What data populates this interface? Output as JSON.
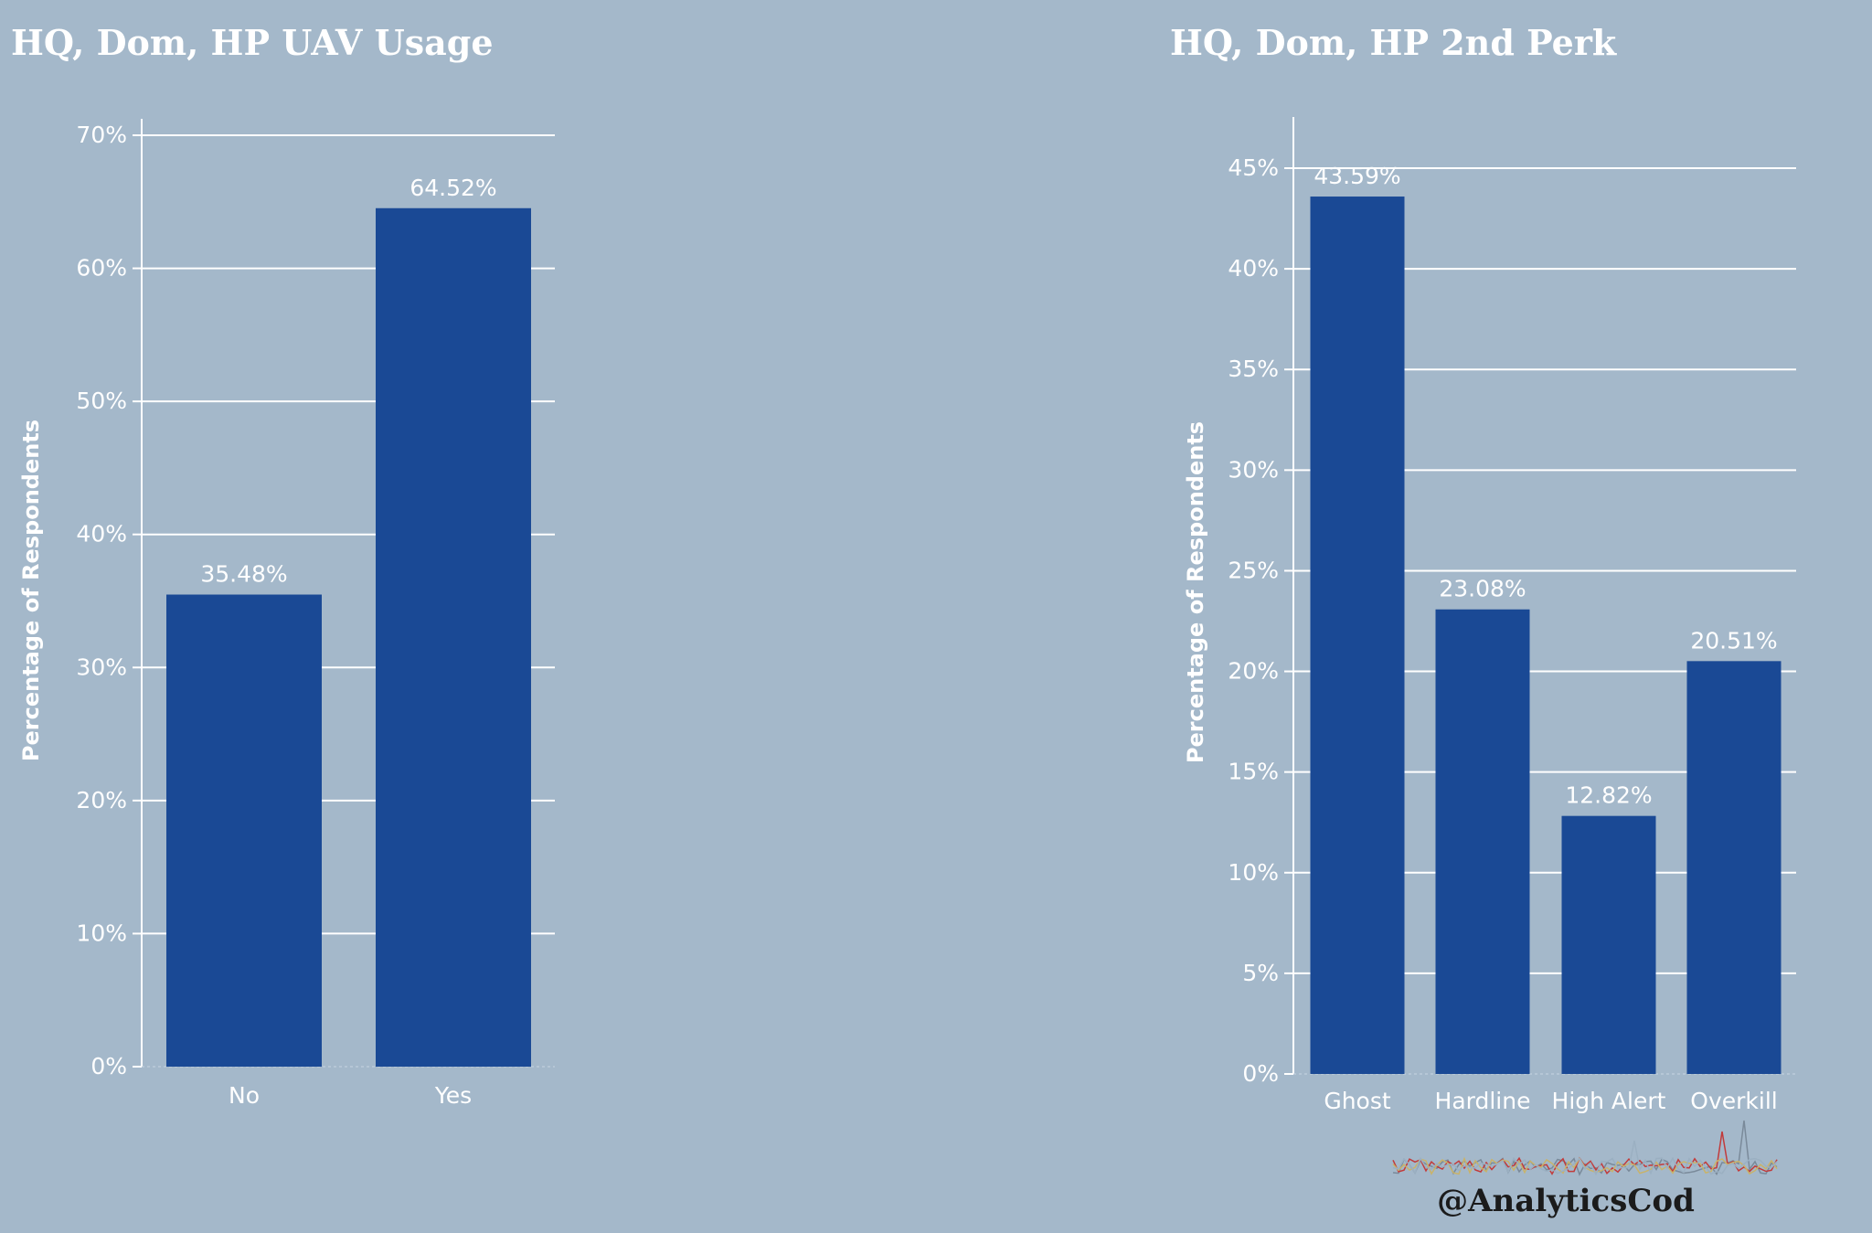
{
  "chart_data": [
    {
      "type": "bar",
      "title": "HQ, Dom, HP UAV Usage",
      "xlabel": "",
      "ylabel": "Percentage of Respondents",
      "categories": [
        "No",
        "Yes"
      ],
      "values": [
        35.48,
        64.52
      ],
      "value_labels": [
        "35.48%",
        "64.52%"
      ],
      "ylim": [
        0,
        70
      ],
      "yticks": [
        0,
        10,
        20,
        30,
        40,
        50,
        60,
        70
      ],
      "ytick_labels": [
        "0%",
        "10%",
        "20%",
        "30%",
        "40%",
        "50%",
        "60%",
        "70%"
      ],
      "grid": true,
      "bar_color": "#1a4995"
    },
    {
      "type": "bar",
      "title": "HQ, Dom, HP 2nd Perk",
      "xlabel": "",
      "ylabel": "Percentage of Respondents",
      "categories": [
        "Ghost",
        "Hardline",
        "High Alert",
        "Overkill"
      ],
      "values": [
        43.59,
        23.08,
        12.82,
        20.51
      ],
      "value_labels": [
        "43.59%",
        "23.08%",
        "12.82%",
        "20.51%"
      ],
      "ylim": [
        0,
        45
      ],
      "yticks": [
        0,
        5,
        10,
        15,
        20,
        25,
        30,
        35,
        40,
        45
      ],
      "ytick_labels": [
        "0%",
        "5%",
        "10%",
        "15%",
        "20%",
        "25%",
        "30%",
        "35%",
        "40%",
        "45%"
      ],
      "grid": true,
      "bar_color": "#1a4995"
    }
  ],
  "watermark": {
    "handle": "@AnalyticsCod"
  },
  "colors": {
    "background": "#a4b8ca",
    "bar": "#1a4995",
    "text": "#ffffff"
  }
}
